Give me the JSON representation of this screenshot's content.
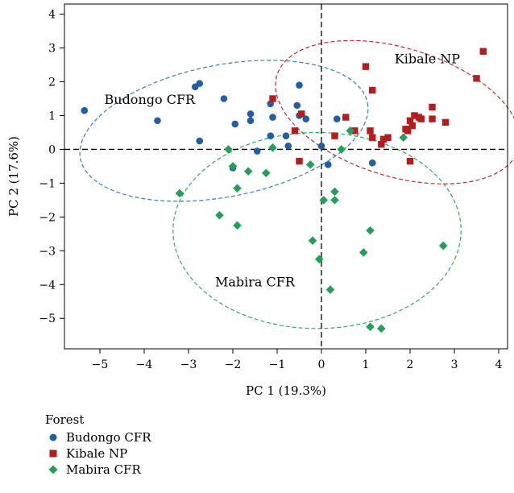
{
  "chart_data": {
    "type": "scatter",
    "xlabel": "PC 1 (19.3%)",
    "ylabel": "PC 2 (17.6%)",
    "xlim": [
      -5.8,
      4.2
    ],
    "ylim": [
      -5.9,
      4.3
    ],
    "xticks": [
      -5,
      -4,
      -3,
      -2,
      -1,
      0,
      1,
      2,
      3,
      4
    ],
    "yticks": [
      -5,
      -4,
      -3,
      -2,
      -1,
      0,
      1,
      2,
      3,
      4
    ],
    "xtick_labels": [
      "−5",
      "−4",
      "−3",
      "−2",
      "−1",
      "0",
      "1",
      "2",
      "3",
      "4"
    ],
    "ytick_labels": [
      "−5",
      "−4",
      "−3",
      "−2",
      "−1",
      "0",
      "1",
      "2",
      "3",
      "4"
    ],
    "grid": false,
    "reference_lines": {
      "x": 0,
      "y": 0,
      "style": "dashed"
    },
    "legend": {
      "title": "Forest",
      "placement": "below",
      "entries": [
        "Budongo CFR",
        "Kibale NP",
        "Mabira CFR"
      ]
    },
    "series": [
      {
        "name": "Budongo CFR",
        "marker": "circle",
        "color": "#1f5fa6",
        "ellipse_color": "#2f7fc1",
        "label": "Budongo CFR",
        "label_pos": [
          -4.9,
          1.35
        ],
        "ellipse": {
          "cx": -2.2,
          "cy": 0.55,
          "rx": 3.3,
          "ry": 1.95,
          "angle_deg": -11
        },
        "points": [
          [
            -5.35,
            1.15
          ],
          [
            -3.7,
            0.85
          ],
          [
            -2.85,
            1.85
          ],
          [
            -2.75,
            1.95
          ],
          [
            -2.75,
            0.25
          ],
          [
            -2.2,
            1.5
          ],
          [
            -1.95,
            0.75
          ],
          [
            -2.0,
            -0.55
          ],
          [
            -1.6,
            1.05
          ],
          [
            -1.6,
            0.85
          ],
          [
            -1.45,
            -0.05
          ],
          [
            -1.15,
            0.4
          ],
          [
            -1.1,
            0.95
          ],
          [
            -1.15,
            1.35
          ],
          [
            -0.8,
            0.4
          ],
          [
            -0.75,
            0.1
          ],
          [
            -0.55,
            1.3
          ],
          [
            -0.5,
            1.9
          ],
          [
            -0.5,
            1.0
          ],
          [
            -0.35,
            0.9
          ],
          [
            0.0,
            0.1
          ],
          [
            0.15,
            -0.45
          ],
          [
            0.35,
            0.9
          ],
          [
            1.15,
            -0.4
          ]
        ]
      },
      {
        "name": "Kibale NP",
        "marker": "square",
        "color": "#b71c1c",
        "ellipse_color": "#c62828",
        "label": "Kibale NP",
        "label_pos": [
          1.65,
          2.55
        ],
        "ellipse": {
          "cx": 1.72,
          "cy": 1.1,
          "rx": 2.85,
          "ry": 1.9,
          "angle_deg": 17
        },
        "points": [
          [
            -1.1,
            1.5
          ],
          [
            -0.6,
            0.55
          ],
          [
            -0.5,
            -0.35
          ],
          [
            -0.45,
            1.05
          ],
          [
            0.3,
            0.4
          ],
          [
            0.55,
            0.95
          ],
          [
            0.75,
            0.55
          ],
          [
            1.0,
            2.45
          ],
          [
            1.1,
            0.55
          ],
          [
            1.15,
            0.35
          ],
          [
            1.15,
            1.75
          ],
          [
            1.35,
            0.15
          ],
          [
            1.4,
            0.3
          ],
          [
            1.5,
            0.35
          ],
          [
            1.9,
            0.6
          ],
          [
            1.95,
            0.55
          ],
          [
            2.0,
            0.85
          ],
          [
            2.05,
            0.7
          ],
          [
            2.1,
            1.0
          ],
          [
            2.2,
            0.95
          ],
          [
            2.25,
            0.9
          ],
          [
            2.5,
            1.25
          ],
          [
            2.5,
            0.9
          ],
          [
            2.8,
            0.8
          ],
          [
            2.0,
            -0.35
          ],
          [
            3.5,
            2.1
          ],
          [
            3.65,
            2.9
          ]
        ]
      },
      {
        "name": "Mabira CFR",
        "marker": "diamond",
        "color": "#21a05a",
        "ellipse_color": "#2eaa60",
        "label": "Mabira CFR",
        "label_pos": [
          -2.4,
          -4.05
        ],
        "ellipse": {
          "cx": -0.1,
          "cy": -2.4,
          "rx": 3.25,
          "ry": 2.9,
          "angle_deg": 0
        },
        "points": [
          [
            -3.2,
            -1.3
          ],
          [
            -2.3,
            -1.95
          ],
          [
            -2.1,
            0.0
          ],
          [
            -2.0,
            -0.5
          ],
          [
            -1.9,
            -1.15
          ],
          [
            -1.9,
            -2.25
          ],
          [
            -1.65,
            -0.65
          ],
          [
            -1.25,
            -0.7
          ],
          [
            -1.1,
            0.05
          ],
          [
            -0.25,
            -0.45
          ],
          [
            -0.2,
            -2.7
          ],
          [
            -0.05,
            -3.25
          ],
          [
            0.05,
            -1.5
          ],
          [
            0.2,
            -4.15
          ],
          [
            0.3,
            -1.25
          ],
          [
            0.3,
            -1.5
          ],
          [
            0.45,
            0.0
          ],
          [
            0.65,
            0.55
          ],
          [
            0.95,
            -3.05
          ],
          [
            1.1,
            -2.4
          ],
          [
            1.1,
            -5.25
          ],
          [
            1.35,
            -5.3
          ],
          [
            1.85,
            0.35
          ],
          [
            2.75,
            -2.85
          ]
        ]
      }
    ]
  }
}
